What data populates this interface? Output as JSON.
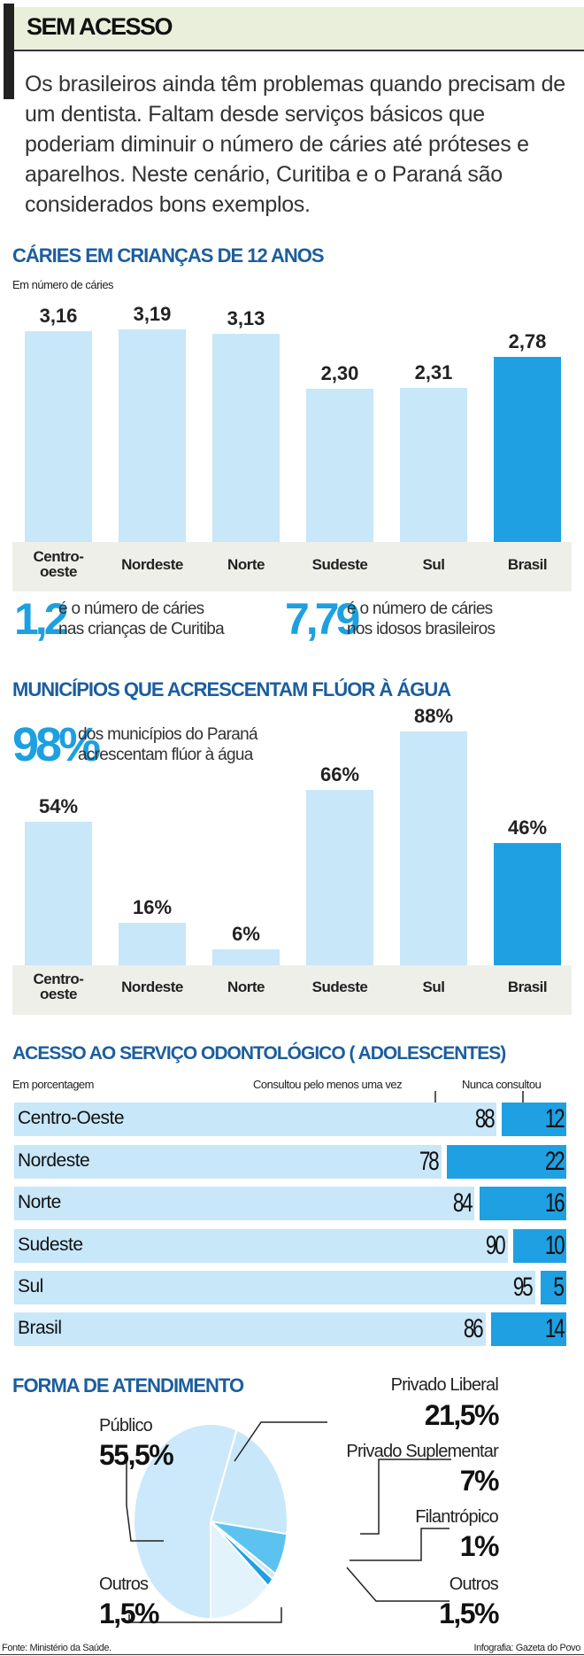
{
  "header": {
    "title": "SEM ACESSO",
    "intro": "Os brasileiros ainda têm problemas quando precisam de um dentista. Faltam desde serviços básicos que poderiam diminuir o número de cáries até próteses e aparelhos. Neste cenário, Curitiba e o Paraná são considerados bons exemplos."
  },
  "colors": {
    "light_bar": "#c8e7f9",
    "highlight_bar": "#1ea0e2",
    "title_blue": "#1c5e9e"
  },
  "chart_data": [
    {
      "type": "bar",
      "title": "CÁRIES EM CRIANÇAS DE 12 ANOS",
      "subtitle": "Em número de cáries",
      "categories": [
        "Centro-oeste",
        "Nordeste",
        "Norte",
        "Sudeste",
        "Sul",
        "Brasil"
      ],
      "category_lines": [
        [
          "Centro-",
          "oeste"
        ],
        [
          "Nordeste"
        ],
        [
          "Norte"
        ],
        [
          "Sudeste"
        ],
        [
          "Sul"
        ],
        [
          "Brasil"
        ]
      ],
      "values": [
        3.16,
        3.19,
        3.13,
        2.3,
        2.31,
        2.78
      ],
      "labels": [
        "3,16",
        "3,19",
        "3,13",
        "2,30",
        "2,31",
        "2,78"
      ],
      "highlight": "Brasil"
    },
    {
      "type": "bar",
      "title": "MUNICÍPIOS QUE ACRESCENTAM FLÚOR À ÁGUA",
      "categories": [
        "Centro-oeste",
        "Nordeste",
        "Norte",
        "Sudeste",
        "Sul",
        "Brasil"
      ],
      "category_lines": [
        [
          "Centro-",
          "oeste"
        ],
        [
          "Nordeste"
        ],
        [
          "Norte"
        ],
        [
          "Sudeste"
        ],
        [
          "Sul"
        ],
        [
          "Brasil"
        ]
      ],
      "values": [
        54,
        16,
        6,
        66,
        88,
        46
      ],
      "labels": [
        "54%",
        "16%",
        "6%",
        "66%",
        "88%",
        "46%"
      ],
      "highlight": "Brasil"
    },
    {
      "type": "bar",
      "orientation": "horizontal-stacked",
      "title": "ACESSO AO SERVIÇO ODONTOLÓGICO ( ADOLESCENTES)",
      "subtitle": "Em porcentagem",
      "series_labels": [
        "Consultou pelo menos uma vez",
        "Nunca consultou"
      ],
      "categories": [
        "Centro-Oeste",
        "Nordeste",
        "Norte",
        "Sudeste",
        "Sul",
        "Brasil"
      ],
      "series": [
        {
          "name": "Consultou pelo menos uma vez",
          "values": [
            88,
            78,
            84,
            90,
            95,
            86
          ]
        },
        {
          "name": "Nunca consultou",
          "values": [
            12,
            22,
            16,
            10,
            5,
            14
          ]
        }
      ]
    },
    {
      "type": "pie",
      "title": "FORMA DE ATENDIMENTO",
      "slices": [
        {
          "label": "Privado Liberal",
          "value": 21.5,
          "text": "21,5%",
          "color": "#c8e7f9"
        },
        {
          "label": "Privado Suplementar",
          "value": 7,
          "text": "7%",
          "color": "#5cc3f0"
        },
        {
          "label": "Filantrópico",
          "value": 1,
          "text": "1%",
          "color": "#c8e7f9"
        },
        {
          "label": "Outros",
          "value": 1.5,
          "text": "1,5%",
          "color": "#1ea0e2"
        },
        {
          "label": "Outros",
          "value": 1.5,
          "text": "1,5%",
          "color": "#e3f3fc"
        },
        {
          "label": "Público",
          "value": 55.5,
          "text": "55,5%",
          "color": "#cbe9fa"
        }
      ]
    }
  ],
  "callouts": {
    "curitiba": {
      "value": "1,2",
      "line1": "é o número de cáries",
      "line2": "nas crianças de Curitiba"
    },
    "idosos": {
      "value": "7,79",
      "line1": "é o número de cáries",
      "line2": "nos idosos brasileiros"
    },
    "parana": {
      "value": "98%",
      "line1": "dos municípios do Paraná",
      "line2": "acrescentam flúor à água"
    }
  },
  "footer": {
    "source": "Fonte: Ministério da Saúde.",
    "credit": "Infografia: Gazeta do Povo"
  }
}
